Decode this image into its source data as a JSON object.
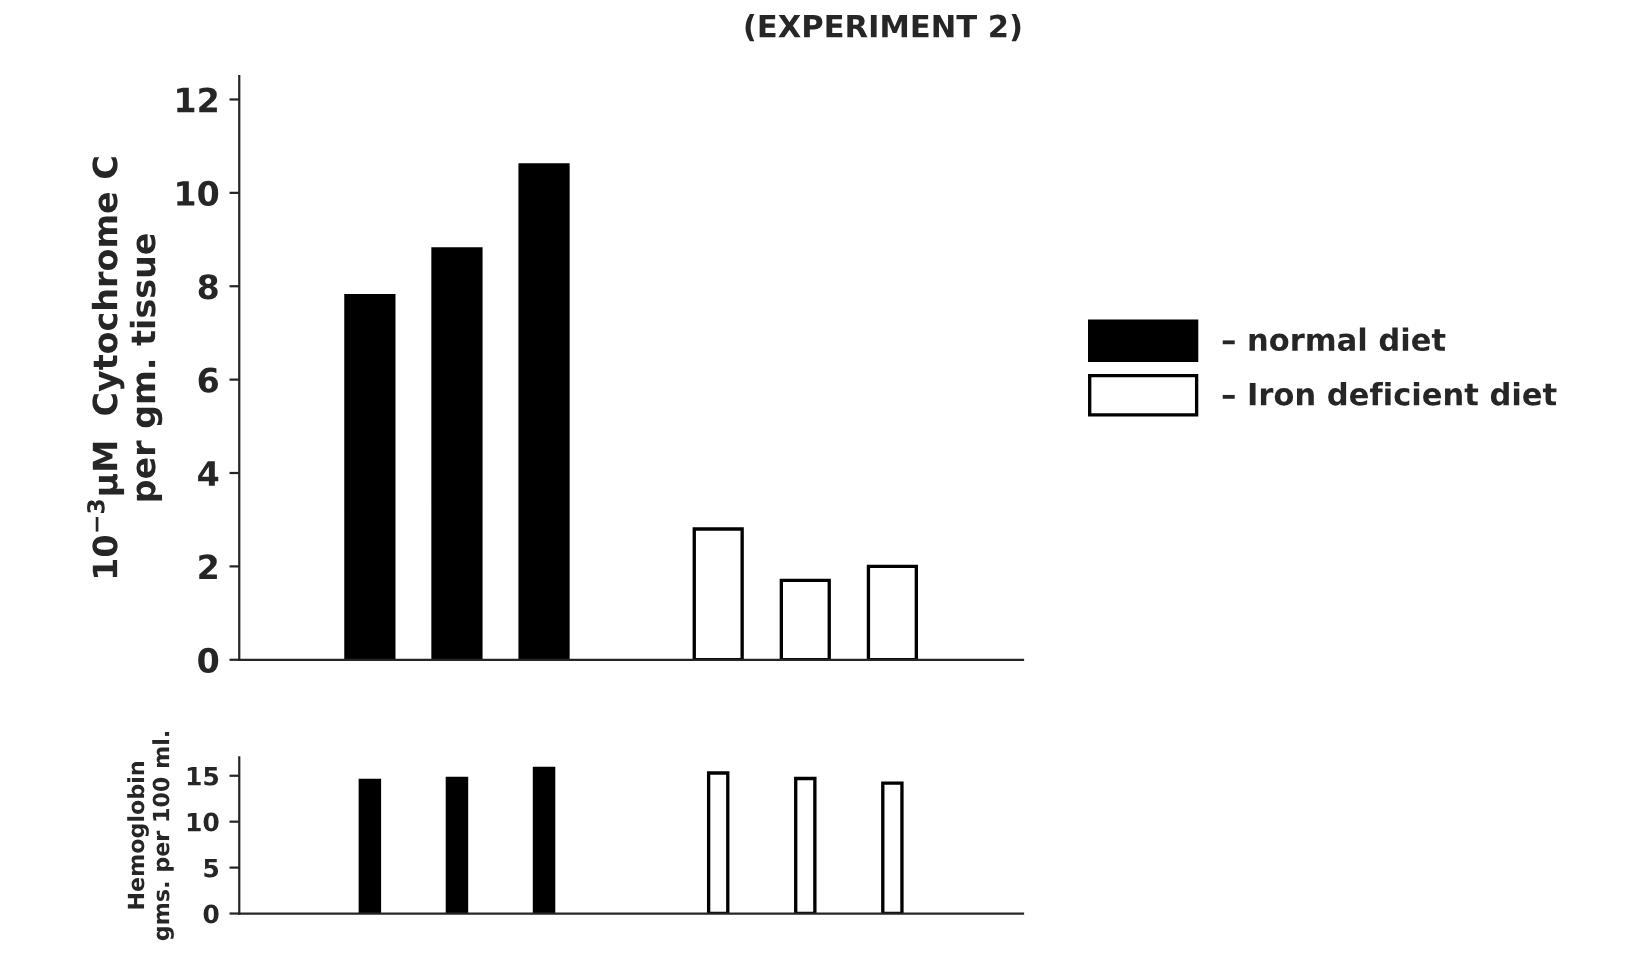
{
  "chart_data": [
    {
      "type": "bar",
      "title": "(EXPERIMENT 2)",
      "ylabel": "10$^{−3}$μM  Cytochrome C\nper gm. tissue",
      "categories": [
        null,
        null,
        null,
        null,
        null,
        null,
        null,
        null,
        null
      ],
      "series": [
        {
          "name": "– normal diet",
          "color": "#000000",
          "values": [
            null,
            7.8,
            8.8,
            10.6,
            null,
            null,
            null,
            null,
            null
          ]
        },
        {
          "name": "– Iron deficient diet",
          "color": "#ffffff",
          "values": [
            null,
            null,
            null,
            null,
            null,
            2.8,
            1.7,
            2.0,
            null
          ]
        }
      ],
      "ylim": [
        0,
        12.5
      ],
      "yticks": [
        0,
        2,
        4,
        6,
        8,
        10,
        12
      ],
      "tick_labels": "y",
      "legend": "right",
      "grid": false
    },
    {
      "type": "bar",
      "ylabel": "Hemoglobin\ngms. per 100 ml.",
      "categories": [
        null,
        null,
        null,
        null,
        null,
        null,
        null,
        null,
        null
      ],
      "series": [
        {
          "color": "#000000",
          "values": [
            null,
            14.5,
            14.7,
            15.8,
            null,
            null,
            null,
            null,
            null
          ]
        },
        {
          "color": "#ffffff",
          "values": [
            null,
            null,
            null,
            null,
            null,
            15.3,
            14.7,
            14.2,
            null
          ]
        }
      ],
      "ylim": [
        0,
        17
      ],
      "yticks": [
        0,
        5,
        10,
        15
      ],
      "tick_labels": "y",
      "grid": false
    }
  ]
}
